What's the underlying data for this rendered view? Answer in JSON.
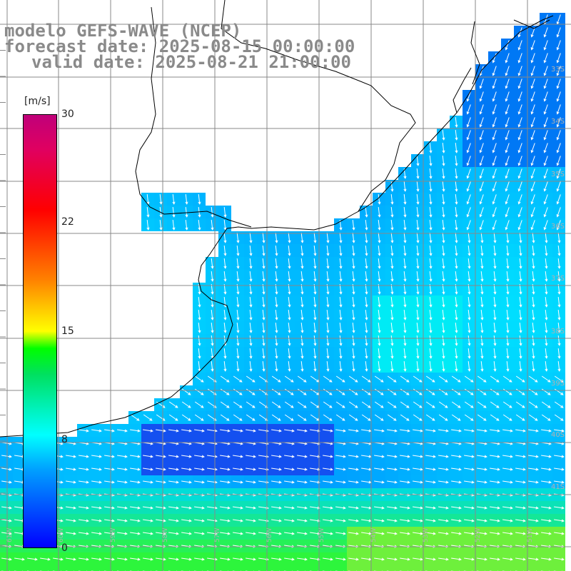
{
  "title": {
    "line1": "modelo GEFS-WAVE (NCEP)",
    "line2": "forecast date: 2025-08-15 00:00:00",
    "line3": "valid date: 2025-08-21 21:00:00"
  },
  "colorbar": {
    "unit": "[m/s]",
    "ticks": [
      "30",
      "22",
      "15",
      "8",
      "0"
    ],
    "colors": [
      "#0000ff",
      "#00a0ff",
      "#00ffff",
      "#00e060",
      "#00ff00",
      "#ffff00",
      "#ff8000",
      "#ff0000",
      "#c0007a"
    ]
  },
  "map": {
    "lat_labels": [
      "33S",
      "34S",
      "35S",
      "36S",
      "37S",
      "38S",
      "39S",
      "40S",
      "41S"
    ],
    "lon_labels": [
      "61W",
      "60W",
      "59W",
      "58W",
      "57W",
      "56W",
      "55W",
      "54W",
      "53W",
      "52W",
      "51W"
    ],
    "land_color": "#ffffff",
    "grid_color": "#888888"
  }
}
